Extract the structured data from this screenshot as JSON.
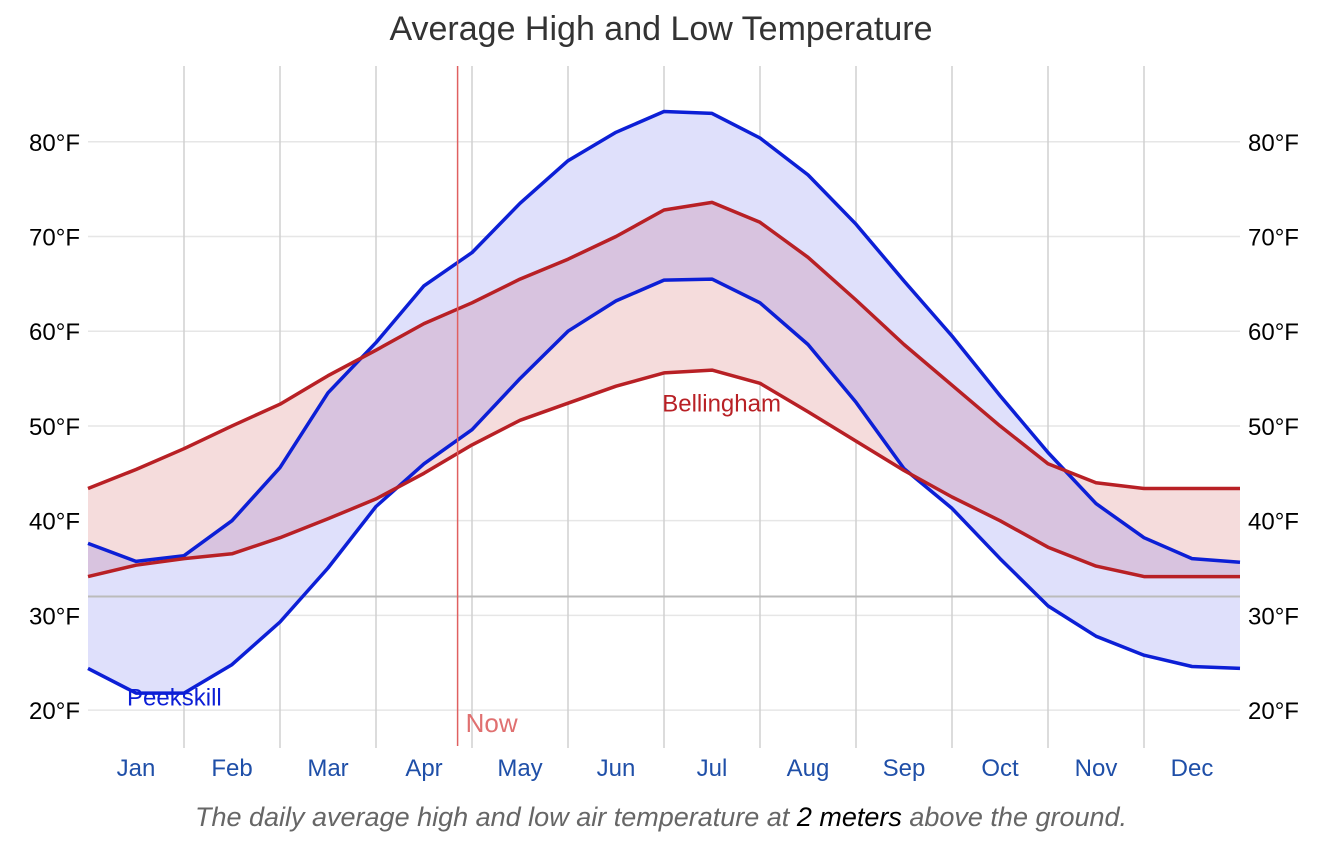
{
  "title": "Average High and Low Temperature",
  "caption": {
    "prefix": "The daily average high and low air temperature at ",
    "emphasis": "2 meters",
    "suffix": " above the ground."
  },
  "chart_data": {
    "type": "area",
    "title": "Average High and Low Temperature",
    "xlabel": "",
    "ylabel": "",
    "x_unit": "month",
    "xlim": [
      0,
      12
    ],
    "ylim": [
      16,
      88
    ],
    "y_ticks": [
      20,
      30,
      40,
      50,
      60,
      70,
      80
    ],
    "y_tick_labels": [
      "20°F",
      "30°F",
      "40°F",
      "50°F",
      "60°F",
      "70°F",
      "80°F"
    ],
    "categories": [
      "Jan",
      "Feb",
      "Mar",
      "Apr",
      "May",
      "Jun",
      "Jul",
      "Aug",
      "Sep",
      "Oct",
      "Nov",
      "Dec"
    ],
    "freezing_line": 32,
    "now": {
      "label": "Now",
      "x": 3.85
    },
    "colors": {
      "peekskill": "#0c1fd6",
      "peekskill_fill": "#dfe0fb",
      "bellingham": "#b82025",
      "bellingham_fill": "#f5dcdc",
      "overlap_fill": "#d8c3df",
      "now": "#e06060",
      "grid": "#e6e6e6",
      "freezing": "#bbbbbb",
      "month_label": "#1f4fa8"
    },
    "series": [
      {
        "name": "Peekskill",
        "x": [
          0,
          0.5,
          1,
          1.5,
          2,
          2.5,
          3,
          3.5,
          4,
          4.5,
          5,
          5.5,
          6,
          6.5,
          7,
          7.5,
          8,
          8.5,
          9,
          9.5,
          10,
          10.5,
          11,
          11.5,
          12
        ],
        "high": [
          37.6,
          35.7,
          36.3,
          40.0,
          45.6,
          53.5,
          58.8,
          64.8,
          68.3,
          73.5,
          78.0,
          81.0,
          83.2,
          83.0,
          80.4,
          76.5,
          71.3,
          65.3,
          59.5,
          53.2,
          47.2,
          41.8,
          38.2,
          36.0,
          35.6
        ],
        "low": [
          24.4,
          21.8,
          21.8,
          24.8,
          29.3,
          35.0,
          41.5,
          46.0,
          49.6,
          55.0,
          60.0,
          63.2,
          65.4,
          65.5,
          63.0,
          58.6,
          52.5,
          45.5,
          41.3,
          36.0,
          31.0,
          27.8,
          25.8,
          24.6,
          24.4
        ],
        "label_position": [
          0.9,
          20.5
        ]
      },
      {
        "name": "Bellingham",
        "x": [
          0,
          0.5,
          1,
          1.5,
          2,
          2.5,
          3,
          3.5,
          4,
          4.5,
          5,
          5.5,
          6,
          6.5,
          7,
          7.5,
          8,
          8.5,
          9,
          9.5,
          10,
          10.5,
          11,
          11.5,
          12
        ],
        "high": [
          43.4,
          45.4,
          47.6,
          50.0,
          52.3,
          55.3,
          58.0,
          60.8,
          63.0,
          65.5,
          67.6,
          70.0,
          72.8,
          73.6,
          71.5,
          67.8,
          63.3,
          58.6,
          54.3,
          50.0,
          46.0,
          44.0,
          43.4,
          43.4,
          43.4
        ],
        "low": [
          34.1,
          35.3,
          36.0,
          36.5,
          38.2,
          40.2,
          42.3,
          45.0,
          48.0,
          50.6,
          52.4,
          54.2,
          55.6,
          55.9,
          54.5,
          51.5,
          48.4,
          45.3,
          42.5,
          40.0,
          37.2,
          35.2,
          34.1,
          34.1,
          34.1
        ],
        "label_position": [
          6.6,
          51.5
        ]
      }
    ]
  }
}
